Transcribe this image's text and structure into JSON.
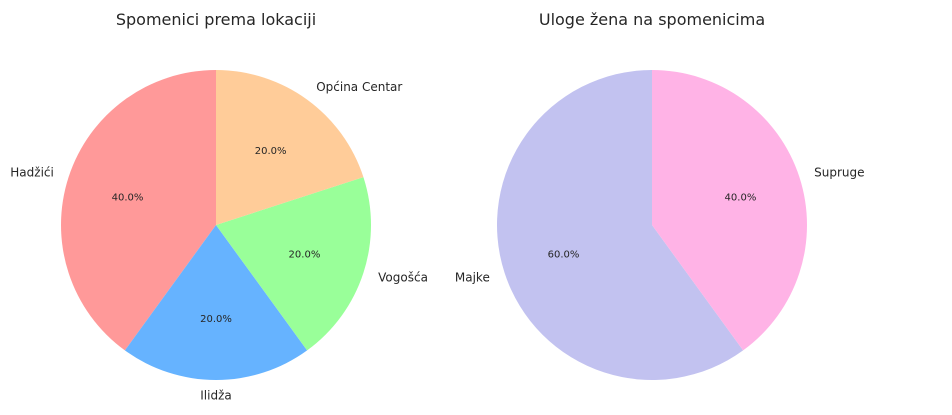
{
  "chart_data": [
    {
      "type": "pie",
      "title": "Spomenici prema lokaciji",
      "categories": [
        "Hadžići",
        "Ilidža",
        "Vogošća",
        "Općina Centar"
      ],
      "values": [
        40.0,
        20.0,
        20.0,
        20.0
      ],
      "percent_labels": [
        "40.0%",
        "20.0%",
        "20.0%",
        "20.0%"
      ],
      "colors": [
        "#ff9999",
        "#66b3ff",
        "#99ff99",
        "#ffcc99"
      ],
      "start_angle_deg": 90,
      "legend": "none"
    },
    {
      "type": "pie",
      "title": "Uloge žena na spomenicima",
      "categories": [
        "Majke",
        "Supruge"
      ],
      "values": [
        60.0,
        40.0
      ],
      "percent_labels": [
        "60.0%",
        "40.0%"
      ],
      "colors": [
        "#c2c2f0",
        "#ffb3e6"
      ],
      "start_angle_deg": 90,
      "legend": "none"
    }
  ]
}
